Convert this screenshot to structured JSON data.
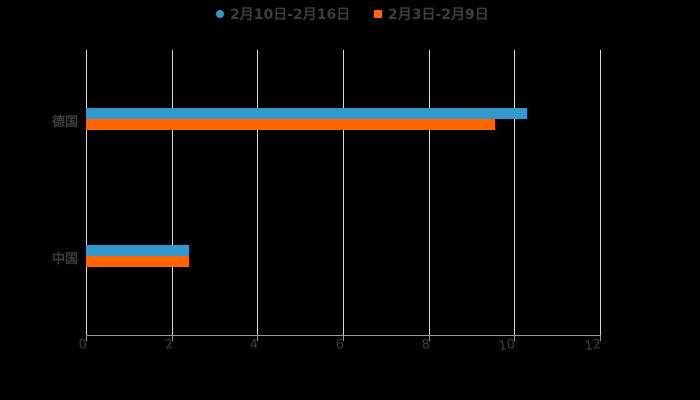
{
  "chart_data": {
    "type": "bar",
    "orientation": "horizontal",
    "title": "",
    "xlabel": "",
    "ylabel": "",
    "categories": [
      "德国",
      "中国"
    ],
    "series": [
      {
        "name": "2月10日-2月16日",
        "color": "#3399cc",
        "values": [
          10.3,
          2.4
        ]
      },
      {
        "name": "2月3日-2月9日",
        "color": "#ff6600",
        "values": [
          9.55,
          2.4
        ]
      }
    ],
    "xlim": [
      0,
      12
    ],
    "x_ticks": [
      "0",
      "2",
      "4",
      "6",
      "8",
      "10",
      "12"
    ],
    "grid": true,
    "legend_position": "top"
  },
  "legend": {
    "items": [
      {
        "label": "2月10日-2月16日",
        "color": "#3399cc"
      },
      {
        "label": "2月3日-2月9日",
        "color": "#ff6600"
      }
    ]
  }
}
